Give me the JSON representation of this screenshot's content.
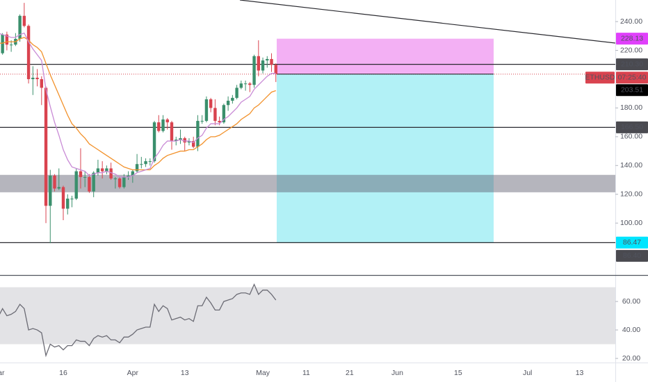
{
  "chart_data": {
    "type": "candlestick",
    "symbol": "ETHUSD",
    "countdown": "07:25:40",
    "categories": [
      "Mar",
      null,
      null,
      null,
      null,
      null,
      null,
      null,
      null,
      null,
      null,
      null,
      null,
      null,
      null,
      "16",
      null,
      null,
      null,
      null,
      null,
      null,
      null,
      null,
      null,
      null,
      null,
      null,
      null,
      null,
      null,
      "Apr",
      null,
      null,
      null,
      null,
      null,
      null,
      null,
      null,
      null,
      null,
      null,
      "13",
      null,
      null,
      null,
      null,
      null,
      null,
      null,
      null,
      null,
      null,
      null,
      null,
      null,
      null,
      null,
      null,
      null,
      "May",
      null,
      null,
      null,
      null,
      null,
      null,
      null,
      null,
      null,
      "11",
      null,
      null,
      null,
      null,
      null,
      null,
      null,
      null,
      null,
      "21",
      null,
      null,
      null,
      null,
      null,
      null,
      null,
      null,
      null,
      null,
      "Jun",
      null,
      null,
      null,
      null,
      null,
      null,
      null,
      null,
      null,
      null,
      null,
      null,
      null,
      "15",
      null,
      null,
      null,
      null,
      null,
      null,
      null,
      null,
      null,
      null,
      null,
      null,
      null,
      null,
      null,
      "Jul",
      null,
      null,
      null,
      null,
      null,
      null,
      null,
      null,
      null,
      null,
      null,
      "13",
      null,
      null,
      null,
      null,
      null,
      null,
      null,
      null
    ],
    "open": [
      226,
      218,
      231,
      224,
      224,
      228,
      244,
      237,
      200,
      201,
      200,
      194,
      112,
      133,
      124,
      125,
      110,
      117,
      117,
      136,
      132,
      132,
      122,
      135,
      138,
      136,
      138,
      131,
      131,
      125,
      132,
      133,
      136,
      141,
      141,
      143,
      143,
      170,
      164,
      172,
      170,
      157,
      158,
      159,
      156,
      157,
      153,
      171,
      171,
      186,
      180,
      171,
      170,
      182,
      185,
      187,
      194,
      197,
      197,
      196,
      216,
      206,
      213,
      214,
      210,
      null,
      null,
      null,
      null,
      null,
      null,
      null,
      null,
      null,
      null,
      null,
      null,
      null,
      null,
      null,
      null,
      null,
      null,
      null,
      null,
      null,
      null,
      null,
      null,
      null,
      null,
      null,
      null,
      null,
      null,
      null,
      null,
      null,
      null,
      null,
      null,
      null,
      null,
      null,
      null,
      null,
      null,
      null,
      null,
      null,
      null,
      null,
      null,
      null,
      null,
      null,
      null,
      null,
      null,
      null,
      null,
      null,
      null,
      null,
      null,
      null,
      null,
      null,
      null,
      null,
      null,
      null,
      null,
      null,
      null,
      null,
      null,
      null,
      null,
      null,
      null,
      null,
      null
    ],
    "high": [
      228,
      232,
      233,
      227,
      232,
      245,
      253,
      238,
      209,
      207,
      202,
      195,
      137,
      134,
      138,
      126,
      120,
      119,
      138,
      152,
      136,
      134,
      136,
      144,
      143,
      140,
      142,
      132,
      132,
      134,
      136,
      137,
      148,
      146,
      145,
      145,
      171,
      175,
      175,
      173,
      171,
      160,
      165,
      160,
      159,
      160,
      175,
      175,
      188,
      187,
      186,
      174,
      183,
      188,
      189,
      196,
      199,
      199,
      198,
      217,
      227,
      215,
      216,
      218,
      211,
      null,
      null,
      null,
      null,
      null,
      null,
      null,
      null,
      null,
      null,
      null,
      null,
      null,
      null,
      null,
      null,
      null,
      null,
      null,
      null,
      null,
      null,
      null,
      null,
      null,
      null,
      null,
      null,
      null,
      null,
      null,
      null,
      null,
      null,
      null,
      null,
      null,
      null,
      null,
      null,
      null,
      null,
      null,
      null,
      null,
      null,
      null,
      null,
      null,
      null,
      null,
      null,
      null,
      null,
      null,
      null,
      null,
      null,
      null,
      null,
      null,
      null,
      null,
      null,
      null,
      null,
      null,
      null,
      null,
      null,
      null,
      null,
      null,
      null,
      null,
      null,
      null,
      null
    ],
    "low": [
      216,
      217,
      220,
      219,
      223,
      226,
      236,
      197,
      189,
      195,
      182,
      100,
      86,
      122,
      123,
      102,
      106,
      111,
      116,
      124,
      125,
      121,
      118,
      133,
      131,
      134,
      130,
      124,
      124,
      124,
      130,
      128,
      135,
      138,
      139,
      140,
      142,
      163,
      163,
      165,
      151,
      154,
      155,
      150,
      154,
      152,
      150,
      169,
      170,
      177,
      168,
      168,
      169,
      178,
      183,
      186,
      193,
      192,
      191,
      194,
      202,
      204,
      208,
      205,
      198,
      null,
      null,
      null,
      null,
      null,
      null,
      null,
      null,
      null,
      null,
      null,
      null,
      null,
      null,
      null,
      null,
      null,
      null,
      null,
      null,
      null,
      null,
      null,
      null,
      null,
      null,
      null,
      null,
      null,
      null,
      null,
      null,
      null,
      null,
      null,
      null,
      null,
      null,
      null,
      null,
      null,
      null,
      null,
      null,
      null,
      null,
      null,
      null,
      null,
      null,
      null,
      null,
      null,
      null,
      null,
      null,
      null,
      null,
      null,
      null,
      null,
      null,
      null,
      null,
      null,
      null,
      null,
      null,
      null,
      null,
      null,
      null,
      null,
      null,
      null,
      null,
      null,
      null
    ],
    "close": [
      218,
      231,
      224,
      224,
      228,
      244,
      237,
      200,
      201,
      200,
      194,
      112,
      133,
      124,
      125,
      110,
      117,
      117,
      136,
      132,
      132,
      122,
      135,
      138,
      136,
      138,
      131,
      131,
      125,
      132,
      133,
      136,
      141,
      141,
      143,
      143,
      170,
      164,
      172,
      170,
      157,
      158,
      159,
      156,
      157,
      153,
      171,
      171,
      186,
      180,
      171,
      170,
      182,
      185,
      187,
      194,
      197,
      197,
      196,
      216,
      206,
      213,
      214,
      210,
      203.51,
      null,
      null,
      null,
      null,
      null,
      null,
      null,
      null,
      null,
      null,
      null,
      null,
      null,
      null,
      null,
      null,
      null,
      null,
      null,
      null,
      null,
      null,
      null,
      null,
      null,
      null,
      null,
      null,
      null,
      null,
      null,
      null,
      null,
      null,
      null,
      null,
      null,
      null,
      null,
      null,
      null,
      null,
      null,
      null,
      null,
      null,
      null,
      null,
      null,
      null,
      null,
      null,
      null,
      null,
      null,
      null,
      null,
      null,
      null,
      null,
      null,
      null,
      null,
      null,
      null,
      null,
      null,
      null,
      null,
      null,
      null,
      null,
      null,
      null,
      null,
      null,
      null,
      null
    ],
    "ema_fast": [
      232,
      231,
      230,
      229,
      229,
      231,
      232,
      226,
      221,
      217,
      213,
      193,
      181,
      170,
      161,
      151,
      144,
      139,
      138,
      137,
      136,
      133,
      134,
      135,
      135,
      136,
      135,
      134,
      132,
      132,
      132,
      133,
      135,
      136,
      137,
      138,
      145,
      149,
      154,
      157,
      157,
      157,
      158,
      157,
      157,
      156,
      159,
      161,
      166,
      169,
      169,
      169,
      172,
      174,
      177,
      180,
      184,
      186,
      188,
      193,
      196,
      199,
      202,
      204,
      204,
      null,
      null,
      null,
      null,
      null,
      null,
      null,
      null,
      null,
      null,
      null,
      null,
      null,
      null,
      null,
      null,
      null,
      null,
      null,
      null,
      null,
      null,
      null,
      null,
      null,
      null,
      null,
      null,
      null,
      null,
      null,
      null,
      null,
      null,
      null,
      null,
      null,
      null,
      null,
      null,
      null,
      null,
      null,
      null,
      null,
      null,
      null,
      null,
      null,
      null,
      null,
      null,
      null,
      null,
      null,
      null,
      null,
      null,
      null,
      null,
      null,
      null,
      null,
      null,
      null,
      null,
      null,
      null,
      null,
      null,
      null,
      null,
      null,
      null,
      null,
      null,
      null,
      null
    ],
    "ema_slow": [
      225,
      225,
      226,
      226,
      226,
      228,
      229,
      227,
      224,
      222,
      219,
      211,
      203,
      196,
      189,
      182,
      175,
      169,
      166,
      162,
      159,
      155,
      153,
      151,
      149,
      147,
      145,
      143,
      141,
      139,
      138,
      137,
      137,
      137,
      137,
      137,
      140,
      142,
      145,
      147,
      148,
      149,
      150,
      150,
      151,
      151,
      153,
      155,
      158,
      160,
      160,
      161,
      163,
      165,
      167,
      169,
      172,
      174,
      176,
      180,
      182,
      185,
      188,
      191,
      192,
      null,
      null,
      null,
      null,
      null,
      null,
      null,
      null,
      null,
      null,
      null,
      null,
      null,
      null,
      null,
      null,
      null,
      null,
      null,
      null,
      null,
      null,
      null,
      null,
      null,
      null,
      null,
      null,
      null,
      null,
      null,
      null,
      null,
      null,
      null,
      null,
      null,
      null,
      null,
      null,
      null,
      null,
      null,
      null,
      null,
      null,
      null,
      null,
      null,
      null,
      null,
      null,
      null,
      null,
      null,
      null,
      null,
      null,
      null,
      null,
      null,
      null,
      null,
      null,
      null,
      null,
      null,
      null,
      null,
      null,
      null,
      null,
      null,
      null,
      null,
      null,
      null,
      null
    ],
    "rsi": [
      49,
      55,
      50,
      51,
      53,
      58,
      55,
      40,
      41,
      40,
      38,
      22,
      30,
      28,
      29,
      26,
      29,
      29,
      33,
      32,
      32,
      29,
      34,
      36,
      35,
      36,
      33,
      33,
      31,
      35,
      35,
      37,
      40,
      41,
      42,
      42,
      58,
      53,
      57,
      55,
      47,
      48,
      49,
      47,
      48,
      46,
      57,
      57,
      63,
      59,
      54,
      54,
      60,
      61,
      62,
      65,
      66,
      66,
      65,
      72,
      65,
      68,
      68,
      65,
      61,
      null,
      null,
      null,
      null,
      null,
      null,
      null,
      null,
      null,
      null,
      null,
      null,
      null,
      null,
      null,
      null,
      null,
      null,
      null,
      null,
      null,
      null,
      null,
      null,
      null,
      null,
      null,
      null,
      null,
      null,
      null,
      null,
      null,
      null,
      null,
      null,
      null,
      null,
      null,
      null,
      null,
      null,
      null,
      null,
      null,
      null,
      null,
      null,
      null,
      null,
      null,
      null,
      null,
      null,
      null,
      null,
      null,
      null,
      null,
      null,
      null,
      null,
      null,
      null,
      null,
      null,
      null,
      null,
      null,
      null,
      null,
      null,
      null,
      null,
      null,
      null,
      null,
      null
    ],
    "up_color": "#3a8f6c",
    "down_color": "#d9434f",
    "ema_fast_color": "#c98bd6",
    "ema_slow_color": "#f2912a",
    "rsi_color": "#6b6b74",
    "ylim": [
      63.9,
      255.0
    ],
    "yticks": [
      {
        "value": 240,
        "label": "240.00"
      },
      {
        "value": 220,
        "label": "220.00"
      },
      {
        "value": 180,
        "label": "180.00"
      },
      {
        "value": 160,
        "label": "160.00"
      },
      {
        "value": 140,
        "label": "140.00"
      },
      {
        "value": 120,
        "label": "120.00"
      },
      {
        "value": 100,
        "label": "100.00"
      }
    ],
    "y2lim": [
      17.1,
      77.6
    ],
    "y2ticks": [
      {
        "value": 60,
        "label": "60.00"
      },
      {
        "value": 40,
        "label": "40.00"
      },
      {
        "value": 20,
        "label": "20.00"
      }
    ],
    "rsi_band": [
      30,
      70
    ],
    "grid": false,
    "zone": [
      121.4,
      133.5
    ],
    "levels": [
      {
        "value": 210.3,
        "label": "210.30",
        "color": "#4a4a50"
      },
      {
        "value": 166.5,
        "label": "166.50",
        "color": "#4a4a50"
      },
      {
        "value": 86.4,
        "label": "86.40",
        "color": "#4a4a50"
      }
    ],
    "position": {
      "stop": {
        "value": 228.13,
        "label": "228.13",
        "color": "#e040fb"
      },
      "entry": {
        "value": 203.51,
        "label": "203.51",
        "color": "#000000"
      },
      "target": {
        "value": 86.47,
        "label": "86.47",
        "color": "#00e5ff"
      }
    }
  }
}
